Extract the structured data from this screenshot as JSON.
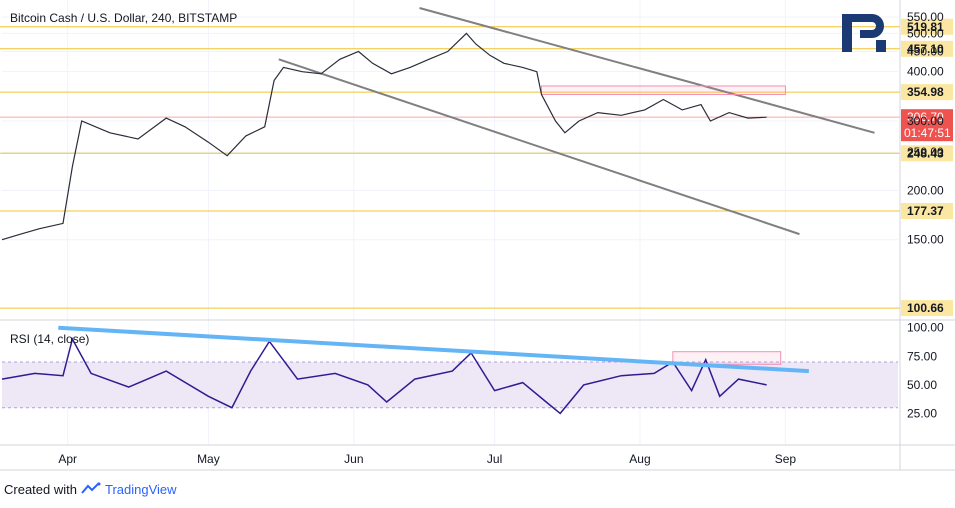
{
  "chart_data": {
    "type": "line",
    "title": "Bitcoin Cash / U.S. Dollar, 240, BITSTAMP",
    "x_ticks": [
      "Apr",
      "May",
      "Jun",
      "Jul",
      "Aug",
      "Sep"
    ],
    "price_axis": {
      "scale": "log",
      "ticks": [
        "550.00",
        "500.00",
        "450.00",
        "400.00",
        "300.00",
        "250.00",
        "200.00",
        "150.00"
      ],
      "ylim": [
        95,
        580
      ]
    },
    "levels": [
      {
        "label": "519.81",
        "value": 519.81
      },
      {
        "label": "457.10",
        "value": 457.1
      },
      {
        "label": "354.98",
        "value": 354.98
      },
      {
        "label": "248.43",
        "value": 248.43
      },
      {
        "label": "177.37",
        "value": 177.37
      },
      {
        "label": "100.66",
        "value": 100.66
      }
    ],
    "current": {
      "price": "306.70",
      "countdown": "01:47:51",
      "value": 306.7
    },
    "price_series": {
      "name": "",
      "points": [
        [
          "2019-03-18",
          150
        ],
        [
          "2019-03-22",
          155
        ],
        [
          "2019-03-26",
          160
        ],
        [
          "2019-03-31",
          165
        ],
        [
          "2019-04-02",
          230
        ],
        [
          "2019-04-04",
          300
        ],
        [
          "2019-04-10",
          280
        ],
        [
          "2019-04-16",
          270
        ],
        [
          "2019-04-22",
          305
        ],
        [
          "2019-04-26",
          290
        ],
        [
          "2019-05-01",
          265
        ],
        [
          "2019-05-05",
          245
        ],
        [
          "2019-05-09",
          275
        ],
        [
          "2019-05-13",
          290
        ],
        [
          "2019-05-15",
          380
        ],
        [
          "2019-05-17",
          410
        ],
        [
          "2019-05-21",
          400
        ],
        [
          "2019-05-25",
          395
        ],
        [
          "2019-05-29",
          430
        ],
        [
          "2019-06-02",
          450
        ],
        [
          "2019-06-05",
          420
        ],
        [
          "2019-06-09",
          395
        ],
        [
          "2019-06-13",
          410
        ],
        [
          "2019-06-17",
          430
        ],
        [
          "2019-06-21",
          450
        ],
        [
          "2019-06-25",
          500
        ],
        [
          "2019-06-27",
          470
        ],
        [
          "2019-06-30",
          440
        ],
        [
          "2019-07-03",
          420
        ],
        [
          "2019-07-07",
          410
        ],
        [
          "2019-07-10",
          400
        ],
        [
          "2019-07-11",
          350
        ],
        [
          "2019-07-14",
          300
        ],
        [
          "2019-07-16",
          280
        ],
        [
          "2019-07-19",
          300
        ],
        [
          "2019-07-23",
          315
        ],
        [
          "2019-07-28",
          310
        ],
        [
          "2019-08-02",
          320
        ],
        [
          "2019-08-06",
          340
        ],
        [
          "2019-08-10",
          320
        ],
        [
          "2019-08-14",
          330
        ],
        [
          "2019-08-16",
          300
        ],
        [
          "2019-08-20",
          315
        ],
        [
          "2019-08-24",
          305
        ],
        [
          "2019-08-28",
          306.7
        ]
      ]
    },
    "channel_lines": [
      {
        "from": [
          "2019-06-15",
          580
        ],
        "to": [
          "2019-09-20",
          280
        ]
      },
      {
        "from": [
          "2019-05-16",
          430
        ],
        "to": [
          "2019-09-04",
          155
        ]
      }
    ],
    "resistance_zone": {
      "from": "2019-07-11",
      "to": "2019-09-01",
      "low": 350,
      "high": 368
    },
    "rsi": {
      "label": "RSI (14, close)",
      "ticks": [
        "100.00",
        "75.00",
        "50.00",
        "25.00"
      ],
      "ylim": [
        0,
        105
      ],
      "band": [
        30,
        70
      ],
      "series": [
        [
          "2019-03-18",
          55
        ],
        [
          "2019-03-25",
          60
        ],
        [
          "2019-03-31",
          58
        ],
        [
          "2019-04-02",
          90
        ],
        [
          "2019-04-06",
          60
        ],
        [
          "2019-04-14",
          48
        ],
        [
          "2019-04-22",
          62
        ],
        [
          "2019-05-01",
          40
        ],
        [
          "2019-05-06",
          30
        ],
        [
          "2019-05-10",
          62
        ],
        [
          "2019-05-14",
          88
        ],
        [
          "2019-05-20",
          55
        ],
        [
          "2019-05-28",
          60
        ],
        [
          "2019-06-04",
          50
        ],
        [
          "2019-06-08",
          35
        ],
        [
          "2019-06-14",
          55
        ],
        [
          "2019-06-22",
          62
        ],
        [
          "2019-06-26",
          78
        ],
        [
          "2019-07-01",
          45
        ],
        [
          "2019-07-07",
          52
        ],
        [
          "2019-07-12",
          35
        ],
        [
          "2019-07-15",
          25
        ],
        [
          "2019-07-20",
          50
        ],
        [
          "2019-07-28",
          58
        ],
        [
          "2019-08-04",
          60
        ],
        [
          "2019-08-08",
          70
        ],
        [
          "2019-08-12",
          45
        ],
        [
          "2019-08-15",
          72
        ],
        [
          "2019-08-18",
          40
        ],
        [
          "2019-08-22",
          55
        ],
        [
          "2019-08-28",
          50
        ]
      ],
      "trendline": {
        "from": [
          "2019-03-30",
          100
        ],
        "to": [
          "2019-09-06",
          62
        ]
      },
      "zone": {
        "from": "2019-08-08",
        "to": "2019-08-31",
        "low": 68,
        "high": 79
      }
    },
    "grid": true
  },
  "colors": {
    "price_line": "#2a2e39",
    "level_line": "#f4c430",
    "current_line": "#f7a9a9",
    "current_badge": "#ef5350",
    "channel": "#808080",
    "zone": "#f48fb1",
    "rsi_line": "#311b92",
    "rsi_band": "#ede7f6",
    "rsi_trend": "#64b5f6",
    "label_bg": "#fbe7a1"
  },
  "footer": {
    "prefix": "Created with",
    "brand": "TradingView"
  }
}
